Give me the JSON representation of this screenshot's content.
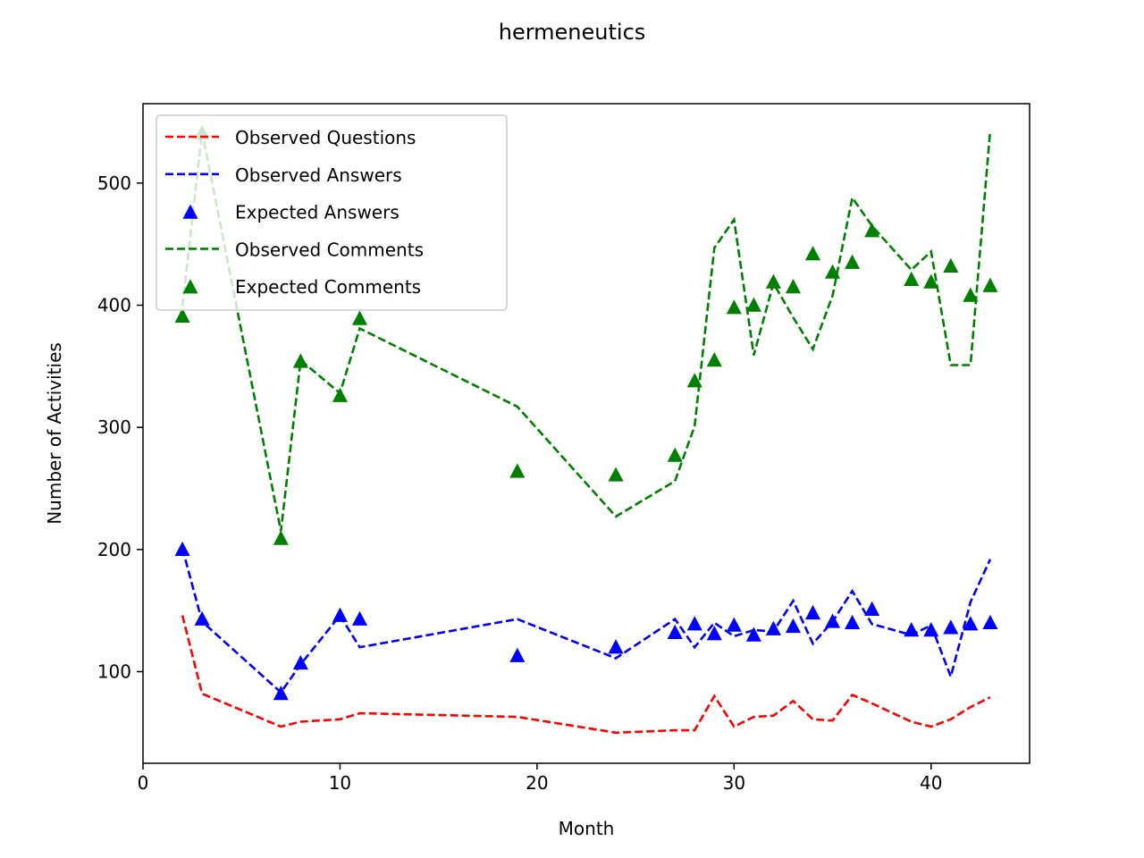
{
  "chart_data": {
    "type": "line",
    "title": "hermeneutics",
    "xlabel": "Month",
    "ylabel": "Number of Activities",
    "xlim": [
      0,
      45
    ],
    "ylim": [
      25,
      565
    ],
    "xticks": [
      0,
      10,
      20,
      30,
      40
    ],
    "yticks": [
      100,
      200,
      300,
      400,
      500
    ],
    "grid": false,
    "legend_position": "top-left",
    "x": [
      2,
      3,
      7,
      8,
      10,
      11,
      19,
      24,
      27,
      28,
      29,
      30,
      31,
      32,
      33,
      34,
      35,
      36,
      37,
      39,
      40,
      41,
      42,
      43
    ],
    "series": [
      {
        "name": "Observed Questions",
        "style": "dashed-line",
        "color": "#ff0000",
        "values": [
          146,
          82,
          55,
          59,
          61,
          66,
          63,
          50,
          52,
          52,
          80,
          55,
          63,
          64,
          76,
          61,
          60,
          81,
          74,
          59,
          55,
          61,
          71,
          79
        ]
      },
      {
        "name": "Observed Answers",
        "style": "dashed-line",
        "color": "#0000ff",
        "values": [
          201,
          141,
          83,
          106,
          146,
          120,
          143,
          111,
          143,
          120,
          140,
          129,
          134,
          133,
          158,
          123,
          141,
          166,
          139,
          130,
          138,
          96,
          157,
          192
        ]
      },
      {
        "name": "Expected Answers",
        "style": "triangle-markers",
        "color": "#0000ff",
        "values": [
          200,
          143,
          82,
          107,
          146,
          143,
          113,
          120,
          132,
          139,
          131,
          138,
          130,
          135,
          137,
          148,
          141,
          140,
          151,
          134,
          134,
          136,
          139,
          140
        ]
      },
      {
        "name": "Observed Comments",
        "style": "dashed-line",
        "color": "#008000",
        "values": [
          399,
          542,
          215,
          355,
          328,
          381,
          317,
          227,
          256,
          301,
          447,
          470,
          359,
          418,
          390,
          364,
          408,
          488,
          465,
          429,
          444,
          351,
          351,
          543
        ]
      },
      {
        "name": "Expected Comments",
        "style": "triangle-markers",
        "color": "#008000",
        "values": [
          391,
          541,
          209,
          354,
          326,
          389,
          264,
          261,
          277,
          338,
          355,
          398,
          400,
          419,
          415,
          442,
          427,
          435,
          461,
          421,
          419,
          432,
          408,
          416
        ]
      }
    ]
  }
}
